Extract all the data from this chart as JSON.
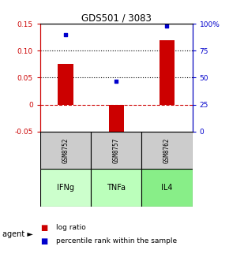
{
  "title": "GDS501 / 3083",
  "categories": [
    "GSM8752",
    "GSM8757",
    "GSM8762"
  ],
  "agents": [
    "IFNg",
    "TNFa",
    "IL4"
  ],
  "log_ratios": [
    0.075,
    -0.065,
    0.12
  ],
  "percentile_ranks": [
    90,
    47,
    98
  ],
  "ylim_left": [
    -0.05,
    0.15
  ],
  "ylim_right": [
    0,
    100
  ],
  "yticks_left": [
    -0.05,
    0,
    0.05,
    0.1,
    0.15
  ],
  "yticks_right": [
    0,
    25,
    50,
    75,
    100
  ],
  "bar_color": "#cc0000",
  "dot_color": "#0000cc",
  "hline_color": "#cc0000",
  "sample_bg": "#cccccc",
  "agent_colors": [
    "#ccffcc",
    "#bbffbb",
    "#88ee88"
  ],
  "legend_bar_label": "log ratio",
  "legend_dot_label": "percentile rank within the sample",
  "agent_label": "agent",
  "bar_width": 0.3
}
